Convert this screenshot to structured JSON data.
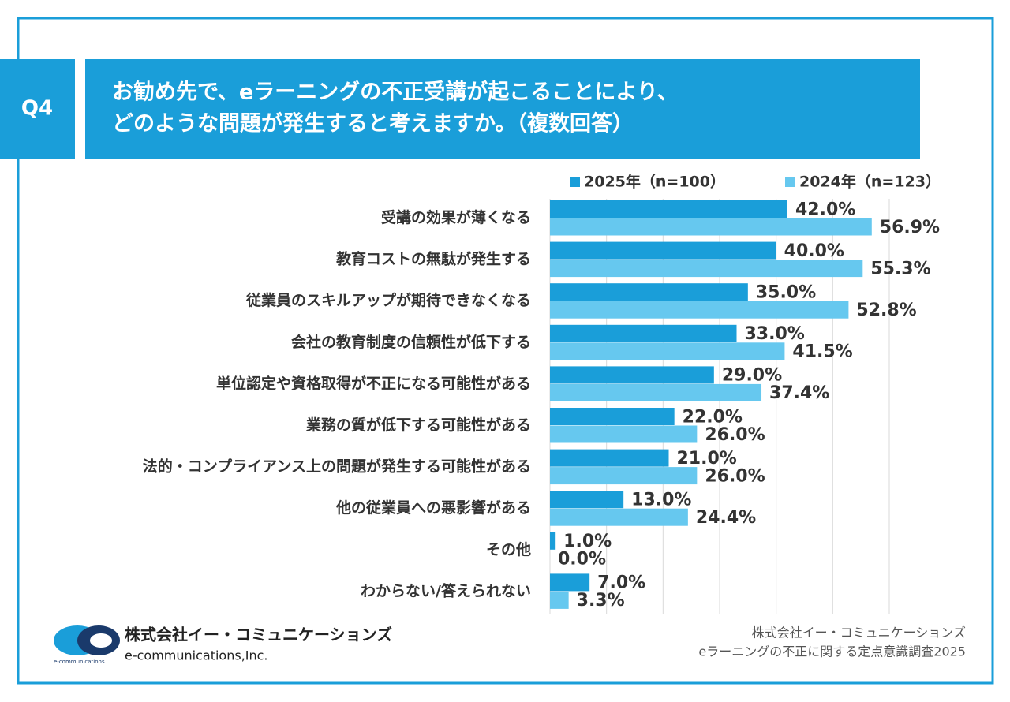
{
  "header": {
    "label": "Q4",
    "title_lines": [
      "お勧め先で、eラーニングの不正受講が起こることにより、",
      "どのような問題が発生すると考えますか。（複数回答）"
    ]
  },
  "chart_data": {
    "type": "hbar",
    "categories": [
      "受講の効果が薄くなる",
      "教育コストの無駄が発生する",
      "従業員のスキルアップが期待できなくなる",
      "会社の教育制度の信頼性が低下する",
      "単位認定や資格取得が不正になる可能性がある",
      "業務の質が低下する可能性がある",
      "法的・コンプライアンス上の問題が発生する可能性がある",
      "他の従業員への悪影響がある",
      "その他",
      "わからない/答えられない"
    ],
    "series": [
      {
        "name": "2025年（n=100）",
        "color": "#1a9ed9",
        "values": [
          42.0,
          40.0,
          35.0,
          33.0,
          29.0,
          22.0,
          21.0,
          13.0,
          1.0,
          7.0
        ],
        "value_labels": [
          "42.0%",
          "40.0%",
          "35.0%",
          "33.0%",
          "29.0%",
          "22.0%",
          "21.0%",
          "13.0%",
          "1.0%",
          "7.0%"
        ]
      },
      {
        "name": "2024年（n=123）",
        "color": "#66c8ef",
        "values": [
          56.9,
          55.3,
          52.8,
          41.5,
          37.4,
          26.0,
          26.0,
          24.4,
          0.0,
          3.3
        ],
        "value_labels": [
          "56.9%",
          "55.3%",
          "52.8%",
          "41.5%",
          "37.4%",
          "26.0%",
          "26.0%",
          "24.4%",
          "0.0%",
          "3.3%"
        ]
      }
    ],
    "xlim": [
      0,
      60
    ],
    "xticks": [
      0,
      10,
      20,
      30,
      40,
      50,
      60
    ],
    "grid": true
  },
  "footer": {
    "logo_small": "e-communications",
    "company_ja": "株式会社イー・コミュニケーションズ",
    "company_en": "e-communications,Inc.",
    "source_lines": [
      "株式会社イー・コミュニケーションズ",
      "eラーニングの不正に関する定点意識調査2025"
    ]
  }
}
